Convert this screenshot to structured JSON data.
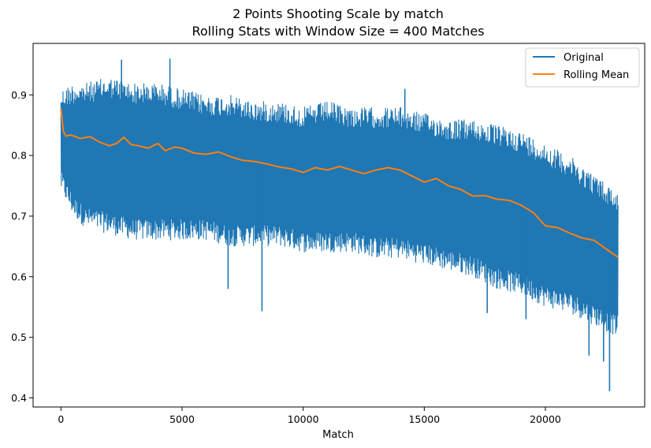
{
  "chart_data": {
    "type": "line",
    "title": "2 Points Shooting Scale by match",
    "subtitle": "Rolling Stats with Window Size = 400 Matches",
    "xlabel": "Match",
    "ylabel": "",
    "xlim": [
      -1150,
      24100
    ],
    "ylim": [
      0.385,
      0.985
    ],
    "x_ticks": [
      0,
      5000,
      10000,
      15000,
      20000
    ],
    "y_ticks": [
      0.4,
      0.5,
      0.6,
      0.7,
      0.8,
      0.9
    ],
    "grid": false,
    "legend_position": "top-right",
    "series": [
      {
        "name": "Original",
        "color": "#1f77b4",
        "x_range": [
          0,
          23000
        ],
        "band": {
          "x": [
            0,
            500,
            1000,
            2000,
            3000,
            4000,
            5000,
            6000,
            7000,
            8000,
            9000,
            10000,
            11000,
            12000,
            13000,
            14000,
            15000,
            16000,
            17000,
            18000,
            19000,
            20000,
            21000,
            22000,
            23000
          ],
          "upper": [
            0.91,
            0.92,
            0.92,
            0.93,
            0.92,
            0.92,
            0.91,
            0.9,
            0.9,
            0.89,
            0.89,
            0.88,
            0.89,
            0.88,
            0.88,
            0.88,
            0.87,
            0.86,
            0.86,
            0.85,
            0.84,
            0.82,
            0.8,
            0.77,
            0.74
          ],
          "lower": [
            0.74,
            0.7,
            0.68,
            0.67,
            0.66,
            0.66,
            0.66,
            0.66,
            0.65,
            0.65,
            0.65,
            0.64,
            0.64,
            0.64,
            0.63,
            0.63,
            0.62,
            0.61,
            0.6,
            0.58,
            0.57,
            0.55,
            0.54,
            0.52,
            0.5
          ]
        },
        "spikes": [
          {
            "x": 2500,
            "y": 0.958
          },
          {
            "x": 4500,
            "y": 0.96
          },
          {
            "x": 14200,
            "y": 0.91
          },
          {
            "x": 6900,
            "y": 0.58
          },
          {
            "x": 8300,
            "y": 0.543
          },
          {
            "x": 17600,
            "y": 0.54
          },
          {
            "x": 19200,
            "y": 0.53
          },
          {
            "x": 21800,
            "y": 0.47
          },
          {
            "x": 22400,
            "y": 0.46
          },
          {
            "x": 22650,
            "y": 0.411
          }
        ]
      },
      {
        "name": "Rolling Mean",
        "color": "#ff7f0e",
        "x": [
          0,
          100,
          200,
          400,
          800,
          1200,
          1600,
          2000,
          2300,
          2600,
          2900,
          3200,
          3600,
          4000,
          4300,
          4700,
          5000,
          5500,
          6000,
          6500,
          7000,
          7500,
          8000,
          8500,
          9000,
          9500,
          10000,
          10500,
          11000,
          11500,
          12000,
          12500,
          13000,
          13500,
          14000,
          14500,
          15000,
          15500,
          16000,
          16500,
          17000,
          17500,
          18000,
          18500,
          19000,
          19500,
          20000,
          20500,
          21000,
          21500,
          22000,
          22500,
          23000
        ],
        "values": [
          0.878,
          0.84,
          0.832,
          0.834,
          0.828,
          0.831,
          0.822,
          0.816,
          0.82,
          0.83,
          0.818,
          0.816,
          0.812,
          0.82,
          0.808,
          0.814,
          0.812,
          0.804,
          0.802,
          0.806,
          0.798,
          0.792,
          0.79,
          0.786,
          0.781,
          0.778,
          0.772,
          0.78,
          0.776,
          0.782,
          0.776,
          0.77,
          0.776,
          0.78,
          0.776,
          0.766,
          0.756,
          0.762,
          0.75,
          0.744,
          0.733,
          0.734,
          0.728,
          0.726,
          0.718,
          0.706,
          0.684,
          0.681,
          0.672,
          0.664,
          0.66,
          0.646,
          0.632
        ]
      }
    ]
  }
}
